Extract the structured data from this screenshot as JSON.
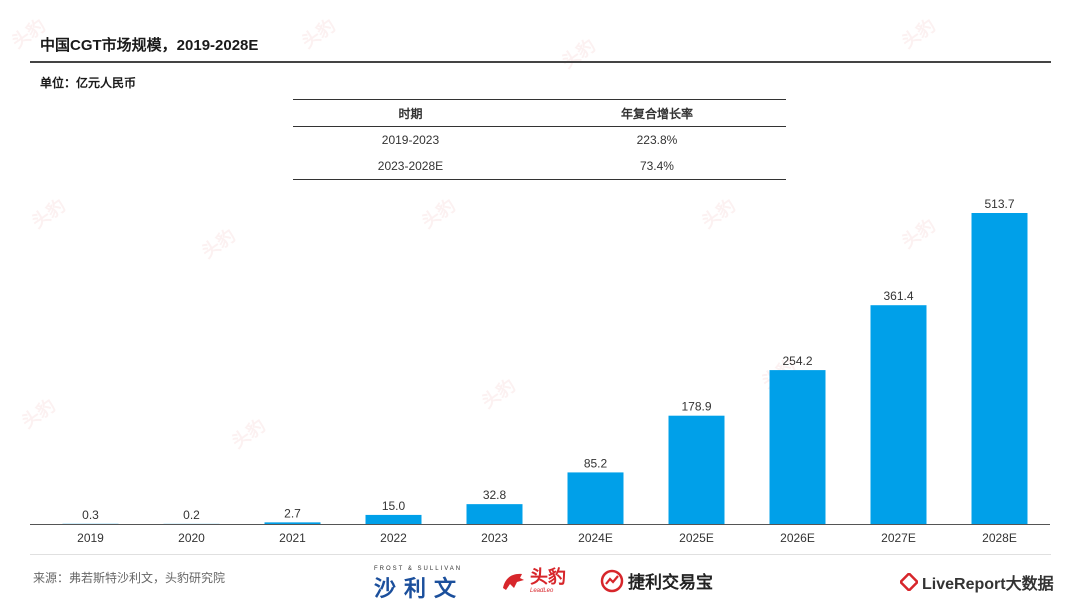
{
  "header": {
    "title": "中国CGT市场规模，2019-2028E",
    "unit": "单位：亿元人民币"
  },
  "cagr_table": {
    "headers": [
      "时期",
      "年复合增长率"
    ],
    "rows": [
      [
        "2019-2023",
        "223.8%"
      ],
      [
        "2023-2028E",
        "73.4%"
      ]
    ]
  },
  "chart_data": {
    "type": "bar",
    "title": "中国CGT市场规模，2019-2028E",
    "categories": [
      "2019",
      "2020",
      "2021",
      "2022",
      "2023",
      "2024E",
      "2025E",
      "2026E",
      "2027E",
      "2028E"
    ],
    "values": [
      0.3,
      0.2,
      2.7,
      15.0,
      32.8,
      85.2,
      178.9,
      254.2,
      361.4,
      513.7
    ],
    "value_labels": [
      "0.3",
      "0.2",
      "2.7",
      "15.0",
      "32.8",
      "85.2",
      "178.9",
      "254.2",
      "361.4",
      "513.7"
    ],
    "ylabel": "单位：亿元人民币",
    "ylim": [
      0,
      513.7
    ],
    "bar_color": "#00a0e9",
    "grid": false,
    "legend": "none"
  },
  "footer": {
    "source": "来源：弗若斯特沙利文，头豹研究院",
    "logos": {
      "frost_small": "FROST & SULLIVAN",
      "frost_cn": "沙利文",
      "toubao_cn": "头豹",
      "toubao_en": "LeadLeo",
      "jieli": "捷利交易宝",
      "livereport": "LiveReport大数据"
    }
  },
  "watermark": "头豹",
  "colors": {
    "accent": "#00a0e9",
    "brand_red": "#d7262b",
    "brand_blue": "#1b4f9c"
  }
}
